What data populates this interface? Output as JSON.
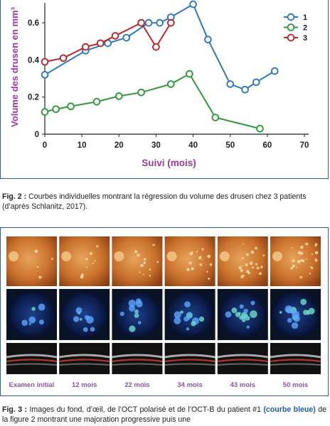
{
  "chart_data": {
    "type": "line",
    "title": "",
    "ylabel": "Volume des drusen en mm³",
    "xlabel": "Suivi (mois)",
    "xlim": [
      0,
      70
    ],
    "ylim": [
      0,
      0.7
    ],
    "xticks": [
      "0",
      "10",
      "20",
      "30",
      "40",
      "50",
      "60",
      "70"
    ],
    "yticks": [
      "0",
      "0.2",
      "0.4",
      "0.6"
    ],
    "legend_position": "top-right",
    "series": [
      {
        "name": "1",
        "color": "#2f78c0",
        "x": [
          0,
          11,
          17,
          22,
          28,
          31,
          34,
          40,
          44,
          50,
          54,
          57,
          62
        ],
        "y": [
          0.32,
          0.45,
          0.49,
          0.52,
          0.6,
          0.6,
          0.63,
          0.7,
          0.51,
          0.27,
          0.24,
          0.28,
          0.34
        ]
      },
      {
        "name": "2",
        "color": "#2f9a3a",
        "x": [
          0,
          3,
          7,
          14,
          20,
          26,
          34,
          39,
          46,
          58
        ],
        "y": [
          0.12,
          0.135,
          0.15,
          0.175,
          0.205,
          0.225,
          0.27,
          0.325,
          0.09,
          0.03
        ]
      },
      {
        "name": "3",
        "color": "#b8282c",
        "x": [
          0,
          5,
          11,
          15,
          19,
          26,
          30,
          34
        ],
        "y": [
          0.39,
          0.41,
          0.47,
          0.49,
          0.53,
          0.6,
          0.47,
          0.6
        ]
      }
    ]
  },
  "captions": {
    "fig2_label": "Fig. 2 :",
    "fig2_text": " Courbes individuelles montrant la régression du volume des drusen chez 3 patients (d’après Schlanitz, 2017).",
    "fig3_label": "Fig. 3 :",
    "fig3_text_a": " Images du fond, d’œil, de l’OCT polarisé et de l’OCT-B du patient #1 ",
    "fig3_bold": "(courbe bleue)",
    "fig3_text_b": " de la figure 2 montrant une majoration progressive puis une"
  },
  "figure3": {
    "timepoints": [
      "Examen initial",
      "12 mois",
      "22 mois",
      "34 mois",
      "43 mois",
      "50 mois"
    ]
  },
  "colors": {
    "axis_label": "#9a3a9e",
    "frame": "#2a5ea0",
    "fundus": "#c8702c",
    "oct_bg": "#0a1530",
    "label_text": "#8a55a8"
  }
}
